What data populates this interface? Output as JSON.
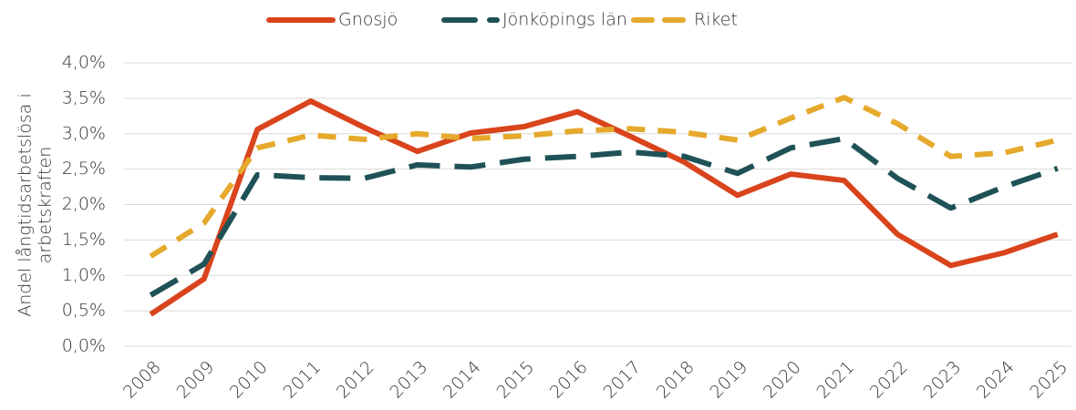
{
  "chart_data": {
    "type": "line",
    "y_label": [
      "Andel långtidsarbetslösa i",
      "arbetskraften"
    ],
    "categories": [
      "2008",
      "2009",
      "2010",
      "2011",
      "2012",
      "2013",
      "2014",
      "2015",
      "2016",
      "2017",
      "2018",
      "2019",
      "2020",
      "2021",
      "2022",
      "2023",
      "2024",
      "2025"
    ],
    "series": [
      {
        "name": "Gnosjö",
        "color": "#d9441c",
        "dash": "solid",
        "values": [
          0.45,
          0.95,
          3.06,
          3.46,
          3.09,
          2.75,
          3.01,
          3.1,
          3.31,
          2.96,
          2.6,
          2.13,
          2.43,
          2.34,
          1.58,
          1.14,
          1.32,
          1.58
        ]
      },
      {
        "name": "Jönköpings län",
        "color": "#1f5257",
        "dash": "long-dash",
        "values": [
          0.72,
          1.16,
          2.42,
          2.38,
          2.37,
          2.56,
          2.53,
          2.64,
          2.68,
          2.74,
          2.68,
          2.44,
          2.8,
          2.93,
          2.37,
          1.95,
          2.25,
          2.51
        ]
      },
      {
        "name": "Riket",
        "color": "#e5a92b",
        "dash": "dash",
        "values": [
          1.27,
          1.74,
          2.8,
          2.98,
          2.92,
          3.0,
          2.93,
          2.97,
          3.04,
          3.07,
          3.02,
          2.91,
          3.22,
          3.51,
          3.14,
          2.68,
          2.73,
          2.91
        ]
      }
    ],
    "ylim": [
      0,
      4
    ],
    "yticks": [
      {
        "value": 0,
        "label": "0,0%"
      },
      {
        "value": 0.5,
        "label": "0,5%"
      },
      {
        "value": 1,
        "label": "1,0%"
      },
      {
        "value": 1.5,
        "label": "1,5%"
      },
      {
        "value": 2,
        "label": "2,0%"
      },
      {
        "value": 2.5,
        "label": "2,5%"
      },
      {
        "value": 3,
        "label": "3,0%"
      },
      {
        "value": 3.5,
        "label": "3,5%"
      },
      {
        "value": 4,
        "label": "4,0%"
      }
    ],
    "grid": true,
    "legend": "top"
  }
}
